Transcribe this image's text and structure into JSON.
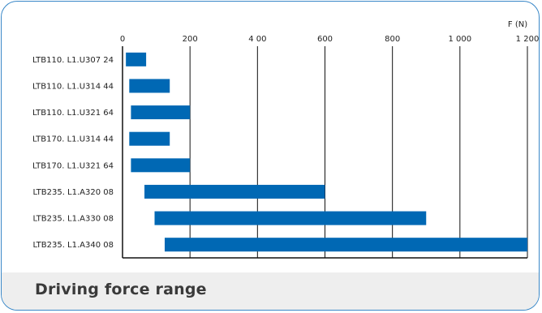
{
  "caption": "Driving force range",
  "chart_data": {
    "type": "bar",
    "orientation": "horizontal",
    "bar_kind": "range",
    "title": "",
    "xlabel": "F (N)",
    "ylabel": "",
    "xlim": [
      0,
      1200
    ],
    "x_ticks": [
      0,
      200,
      400,
      600,
      800,
      1000,
      1200
    ],
    "x_tick_labels": [
      "0",
      "200",
      "4 00",
      "600",
      "800",
      "1 000",
      "1 200"
    ],
    "grid": "vertical",
    "bar_color": "#0068b4",
    "categories": [
      "LTB110. L1.U307 24",
      "LTB110. L1.U314 44",
      "LTB110. L1.U321 64",
      "LTB170. L1.U314 44",
      "LTB170. L1.U321 64",
      "LTB235. L1.A320 08",
      "LTB235. L1.A330 08",
      "LTB235. L1.A340 08"
    ],
    "ranges": [
      [
        10,
        70
      ],
      [
        20,
        140
      ],
      [
        25,
        200
      ],
      [
        20,
        140
      ],
      [
        25,
        200
      ],
      [
        65,
        600
      ],
      [
        95,
        900
      ],
      [
        125,
        1200
      ]
    ]
  }
}
